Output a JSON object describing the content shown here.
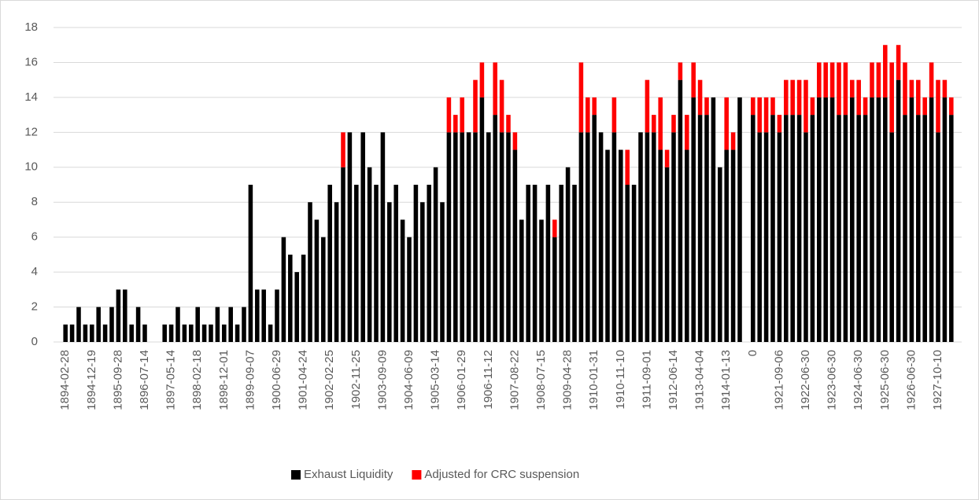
{
  "chart_data": {
    "type": "stacked_bar",
    "categories": [
      "1894-02-28",
      null,
      null,
      null,
      "1894-12-19",
      null,
      null,
      null,
      "1895-09-28",
      null,
      null,
      null,
      "1896-07-14",
      null,
      null,
      null,
      "1897-05-14",
      null,
      null,
      null,
      "1898-02-18",
      null,
      null,
      null,
      "1898-12-01",
      null,
      null,
      null,
      "1899-09-07",
      null,
      null,
      null,
      "1900-06-29",
      null,
      null,
      null,
      "1901-04-24",
      null,
      null,
      null,
      "1902-02-25",
      null,
      null,
      null,
      "1902-11-25",
      null,
      null,
      null,
      "1903-09-09",
      null,
      null,
      null,
      "1904-06-09",
      null,
      null,
      null,
      "1905-03-14",
      null,
      null,
      null,
      "1906-01-29",
      null,
      null,
      null,
      "1906-11-12",
      null,
      null,
      null,
      "1907-08-22",
      null,
      null,
      null,
      "1908-07-15",
      null,
      null,
      null,
      "1909-04-28",
      null,
      null,
      null,
      "1910-01-31",
      null,
      null,
      null,
      "1910-11-10",
      null,
      null,
      null,
      "1911-09-01",
      null,
      null,
      null,
      "1912-06-14",
      null,
      null,
      null,
      "1913-04-04",
      null,
      null,
      null,
      "1914-01-13",
      null,
      null,
      null,
      "0",
      null,
      null,
      null,
      "1921-09-06",
      null,
      null,
      null,
      "1922-06-30",
      null,
      null,
      null,
      "1923-06-30",
      null,
      null,
      null,
      "1924-06-30",
      null,
      null,
      null,
      "1925-06-30",
      null,
      null,
      null,
      "1926-06-30",
      null,
      null,
      null,
      "1927-10-10",
      null,
      null
    ],
    "series": [
      {
        "name": "Exhaust Liquidity",
        "color": "#000000",
        "values": [
          1,
          1,
          2,
          1,
          1,
          2,
          1,
          2,
          3,
          3,
          1,
          2,
          1,
          null,
          null,
          1,
          1,
          2,
          1,
          1,
          2,
          1,
          1,
          2,
          1,
          2,
          1,
          2,
          9,
          3,
          3,
          1,
          3,
          6,
          5,
          4,
          5,
          8,
          7,
          6,
          9,
          8,
          10,
          12,
          9,
          12,
          10,
          9,
          12,
          8,
          9,
          7,
          6,
          9,
          8,
          9,
          10,
          8,
          12,
          12,
          12,
          12,
          12,
          14,
          12,
          13,
          12,
          12,
          11,
          7,
          9,
          9,
          7,
          9,
          6,
          9,
          10,
          9,
          12,
          12,
          13,
          12,
          11,
          12,
          11,
          9,
          9,
          12,
          12,
          12,
          11,
          10,
          12,
          15,
          11,
          14,
          13,
          13,
          14,
          10,
          11,
          11,
          14,
          null,
          13,
          12,
          12,
          13,
          12,
          13,
          13,
          13,
          12,
          13,
          14,
          14,
          14,
          13,
          13,
          14,
          13,
          13,
          14,
          14,
          14,
          12,
          15,
          13,
          14,
          13,
          13,
          14,
          12,
          14,
          13
        ]
      },
      {
        "name": "Adjusted for CRC suspension",
        "color": "#ff0000",
        "values": [
          0,
          0,
          0,
          0,
          0,
          0,
          0,
          0,
          0,
          0,
          0,
          0,
          0,
          null,
          null,
          0,
          0,
          0,
          0,
          0,
          0,
          0,
          0,
          0,
          0,
          0,
          0,
          0,
          0,
          0,
          0,
          0,
          0,
          0,
          0,
          0,
          0,
          0,
          0,
          0,
          0,
          0,
          2,
          0,
          0,
          0,
          0,
          0,
          0,
          0,
          0,
          0,
          0,
          0,
          0,
          0,
          0,
          0,
          2,
          1,
          2,
          0,
          3,
          2,
          0,
          3,
          3,
          1,
          1,
          0,
          0,
          0,
          0,
          0,
          1,
          0,
          0,
          0,
          4,
          2,
          1,
          0,
          0,
          2,
          0,
          2,
          0,
          0,
          3,
          1,
          3,
          1,
          1,
          1,
          2,
          2,
          2,
          1,
          0,
          0,
          3,
          1,
          0,
          null,
          1,
          2,
          2,
          1,
          1,
          2,
          2,
          2,
          3,
          1,
          2,
          2,
          2,
          3,
          3,
          1,
          2,
          1,
          2,
          2,
          3,
          4,
          2,
          3,
          1,
          2,
          1,
          2,
          3,
          1,
          1
        ]
      }
    ],
    "ylim": [
      0,
      18
    ],
    "yticks": [
      0,
      2,
      4,
      6,
      8,
      10,
      12,
      14,
      16,
      18
    ],
    "grid": true,
    "legend": "bottom"
  }
}
